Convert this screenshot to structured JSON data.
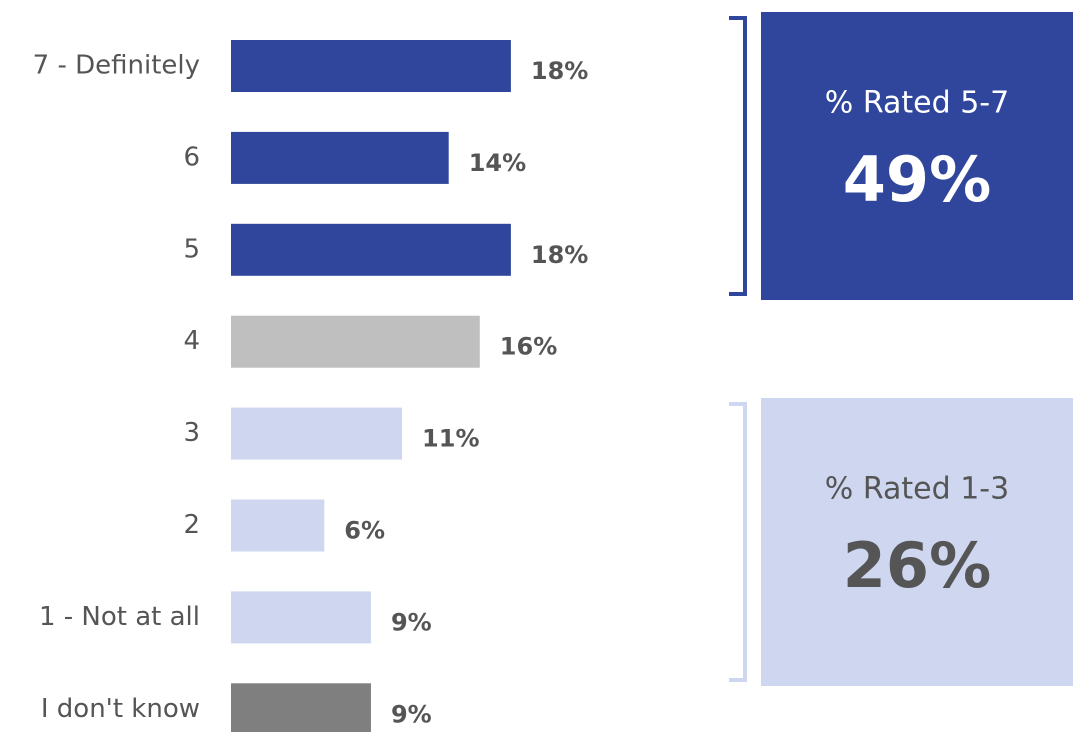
{
  "chart_data": {
    "type": "bar",
    "orientation": "horizontal",
    "categories": [
      "7 - Definitely",
      "6",
      "5",
      "4",
      "3",
      "2",
      "1 - Not at all",
      "I don't know"
    ],
    "values": [
      18,
      14,
      18,
      16,
      11,
      6,
      9,
      9
    ],
    "value_labels": [
      "18%",
      "14%",
      "18%",
      "16%",
      "11%",
      "6%",
      "9%",
      "9%"
    ],
    "colors": [
      "#30469c",
      "#30469c",
      "#30469c",
      "#bfbfbf",
      "#cfd7f0",
      "#cfd7f0",
      "#cfd7f0",
      "#7f7f7f"
    ],
    "summaries": [
      {
        "label": "% Rated 5-7",
        "value_label": "49%",
        "color": "#30469c",
        "text_color": "#ffffff",
        "bracket_color": "#30469c"
      },
      {
        "label": "% Rated 1-3",
        "value_label": "26%",
        "color": "#cfd7f0",
        "text_color": "#555555",
        "bracket_color": "#cfd7f0"
      }
    ]
  }
}
